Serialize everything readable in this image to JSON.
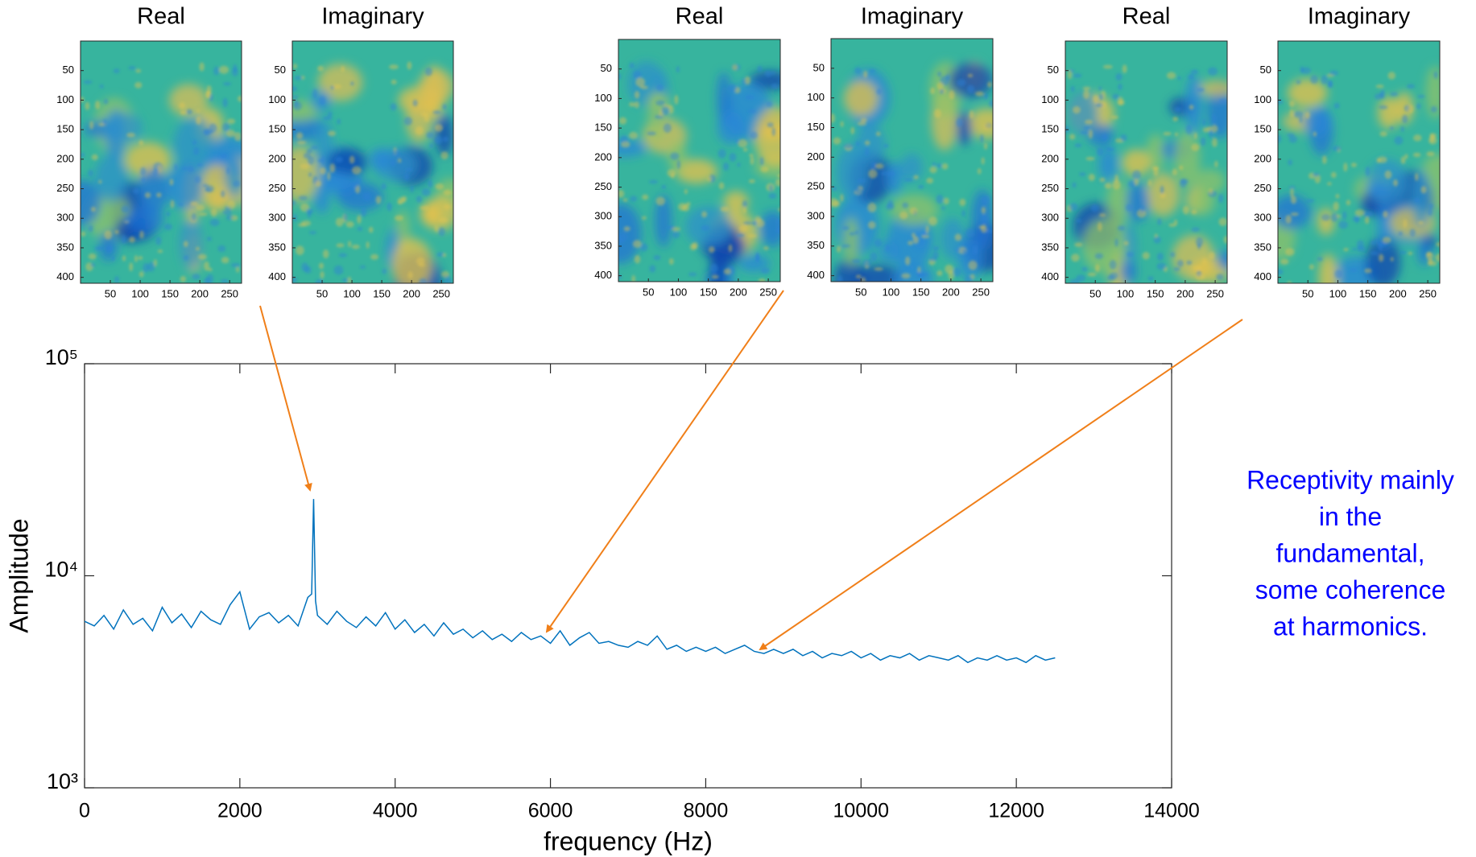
{
  "chart_data": [
    {
      "type": "line",
      "x": [
        0,
        125,
        250,
        375,
        500,
        625,
        750,
        875,
        1000,
        1125,
        1250,
        1375,
        1500,
        1625,
        1750,
        1875,
        2000,
        2125,
        2250,
        2375,
        2500,
        2625,
        2750,
        2875,
        2925,
        2950,
        2975,
        3000,
        3125,
        3250,
        3375,
        3500,
        3625,
        3750,
        3875,
        4000,
        4125,
        4250,
        4375,
        4500,
        4625,
        4750,
        4875,
        5000,
        5125,
        5250,
        5375,
        5500,
        5625,
        5750,
        5875,
        6000,
        6125,
        6250,
        6375,
        6500,
        6625,
        6750,
        6875,
        7000,
        7125,
        7250,
        7375,
        7500,
        7625,
        7750,
        7875,
        8000,
        8125,
        8250,
        8375,
        8500,
        8625,
        8750,
        8875,
        9000,
        9125,
        9250,
        9375,
        9500,
        9625,
        9750,
        9875,
        10000,
        10125,
        10250,
        10375,
        10500,
        10625,
        10750,
        10875,
        11000,
        11125,
        11250,
        11375,
        11500,
        11625,
        11750,
        11875,
        12000,
        12125,
        12250,
        12375,
        12500
      ],
      "values": [
        6100,
        5800,
        6500,
        5600,
        6900,
        5900,
        6300,
        5500,
        7100,
        6000,
        6600,
        5700,
        6800,
        6200,
        5900,
        7300,
        8400,
        5600,
        6400,
        6700,
        6000,
        6500,
        5800,
        7900,
        8200,
        23000,
        7600,
        6500,
        5900,
        6800,
        6100,
        5700,
        6400,
        5800,
        6700,
        5600,
        6200,
        5400,
        5900,
        5200,
        6000,
        5300,
        5600,
        5100,
        5500,
        5000,
        5300,
        4900,
        5400,
        5000,
        5200,
        4800,
        5500,
        4700,
        5100,
        5400,
        4800,
        4900,
        4700,
        4600,
        4900,
        4700,
        5200,
        4500,
        4700,
        4400,
        4600,
        4400,
        4600,
        4300,
        4500,
        4700,
        4400,
        4300,
        4500,
        4300,
        4500,
        4200,
        4400,
        4100,
        4300,
        4200,
        4400,
        4100,
        4300,
        4000,
        4200,
        4100,
        4300,
        4000,
        4200,
        4100,
        4000,
        4200,
        3900,
        4100,
        4000,
        4200,
        4000,
        4100,
        3900,
        4200,
        4000,
        4100
      ],
      "color": "#0072bd",
      "xlabel": "frequency (Hz)",
      "ylabel": "Amplitude",
      "xlim": [
        0,
        14000
      ],
      "xticks": [
        0,
        2000,
        4000,
        6000,
        8000,
        10000,
        12000,
        14000
      ],
      "ylim": [
        1000,
        100000
      ],
      "yticks": [
        {
          "value": 1000,
          "label": "10³"
        },
        {
          "value": 10000,
          "label": "10⁴"
        },
        {
          "value": 100000,
          "label": "10⁵"
        }
      ],
      "log_y": true,
      "annotation": [
        "Receptivity mainly",
        "in the",
        "fundamental,",
        "some coherence",
        "at harmonics."
      ],
      "annotation_color": "#0000ff",
      "arrow_color": "#f07f19"
    },
    {
      "type": "image",
      "title": "Real",
      "xlim": [
        0,
        270
      ],
      "ylim": [
        0,
        410
      ],
      "y_reversed": true,
      "xticks": [
        50,
        100,
        150,
        200,
        250
      ],
      "yticks": [
        50,
        100,
        150,
        200,
        250,
        300,
        350,
        400
      ]
    },
    {
      "type": "image",
      "title": "Imaginary",
      "xlim": [
        0,
        270
      ],
      "ylim": [
        0,
        410
      ],
      "y_reversed": true,
      "xticks": [
        50,
        100,
        150,
        200,
        250
      ],
      "yticks": [
        50,
        100,
        150,
        200,
        250,
        300,
        350,
        400
      ]
    },
    {
      "type": "image",
      "title": "Real",
      "xlim": [
        0,
        270
      ],
      "ylim": [
        0,
        410
      ],
      "y_reversed": true,
      "xticks": [
        50,
        100,
        150,
        200,
        250
      ],
      "yticks": [
        50,
        100,
        150,
        200,
        250,
        300,
        350,
        400
      ]
    },
    {
      "type": "image",
      "title": "Imaginary",
      "xlim": [
        0,
        270
      ],
      "ylim": [
        0,
        410
      ],
      "y_reversed": true,
      "xticks": [
        50,
        100,
        150,
        200,
        250
      ],
      "yticks": [
        50,
        100,
        150,
        200,
        250,
        300,
        350,
        400
      ]
    },
    {
      "type": "image",
      "title": "Real",
      "xlim": [
        0,
        270
      ],
      "ylim": [
        0,
        410
      ],
      "y_reversed": true,
      "xticks": [
        50,
        100,
        150,
        200,
        250
      ],
      "yticks": [
        50,
        100,
        150,
        200,
        250,
        300,
        350,
        400
      ]
    },
    {
      "type": "image",
      "title": "Imaginary",
      "xlim": [
        0,
        270
      ],
      "ylim": [
        0,
        410
      ],
      "y_reversed": true,
      "xticks": [
        50,
        100,
        150,
        200,
        250
      ],
      "yticks": [
        50,
        100,
        150,
        200,
        250,
        300,
        350,
        400
      ]
    }
  ]
}
